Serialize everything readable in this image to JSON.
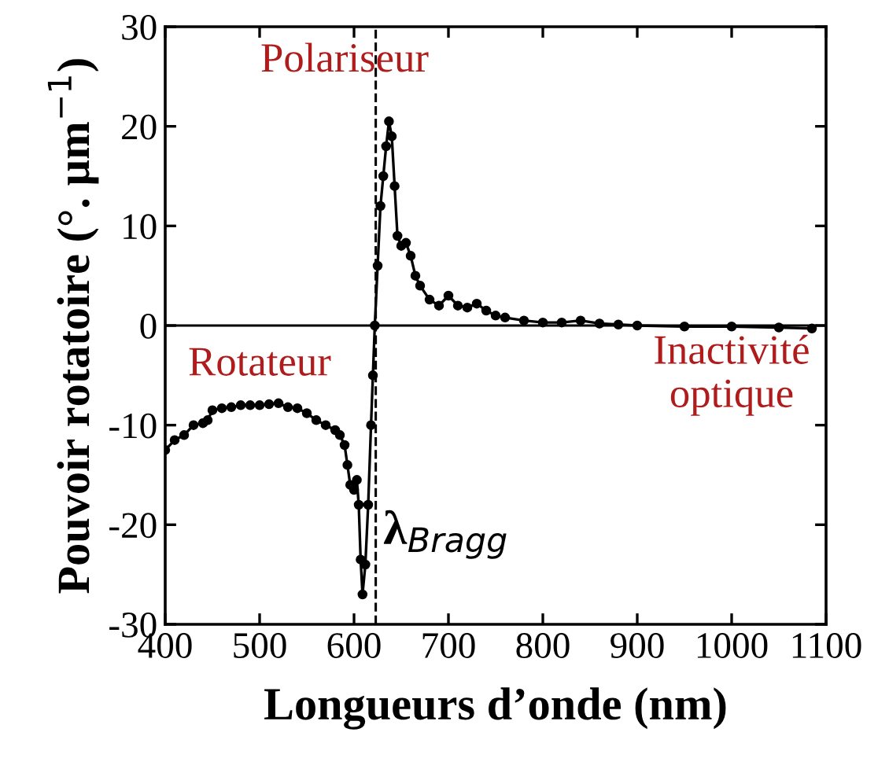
{
  "chart_data": {
    "type": "line",
    "xlabel": "Longueurs d’onde (nm)",
    "ylabel": "Pouvoir rotatoire (°. µm$^{−1}$)",
    "xlim": [
      400,
      1100
    ],
    "xticks": [
      400,
      500,
      600,
      700,
      800,
      900,
      1000,
      1100
    ],
    "ylim": [
      -30,
      30
    ],
    "yticks": [
      -30,
      -20,
      -10,
      0,
      10,
      20,
      30
    ],
    "grid": false,
    "marker": "circle",
    "line_style": "solid",
    "series": [
      {
        "color": "#000000",
        "x": [
          400,
          410,
          420,
          430,
          440,
          445,
          450,
          460,
          470,
          480,
          490,
          500,
          510,
          520,
          530,
          540,
          550,
          560,
          570,
          580,
          585,
          590,
          593,
          596,
          600,
          603,
          605,
          607,
          609,
          612,
          615,
          618,
          620,
          622,
          625,
          628,
          631,
          634,
          637,
          640,
          643,
          646,
          650,
          655,
          660,
          665,
          670,
          680,
          690,
          700,
          710,
          720,
          730,
          740,
          750,
          760,
          780,
          800,
          820,
          840,
          860,
          880,
          900,
          950,
          1000,
          1050,
          1085
        ],
        "values": [
          -12.5,
          -11.5,
          -11,
          -10,
          -9.8,
          -9.5,
          -8.5,
          -8.3,
          -8.2,
          -8,
          -8,
          -8,
          -7.9,
          -7.8,
          -8.2,
          -8.3,
          -8.8,
          -9.5,
          -10,
          -10.5,
          -11,
          -12,
          -14,
          -16,
          -16.5,
          -15.5,
          -18,
          -23.5,
          -27,
          -24,
          -18,
          -10,
          -5,
          0,
          6,
          12,
          15,
          18,
          20.5,
          19,
          14,
          9,
          8,
          8.3,
          7,
          5,
          4,
          2.6,
          2,
          3,
          2,
          1.8,
          2.2,
          1.5,
          1,
          0.8,
          0.5,
          0.3,
          0.3,
          0.5,
          0.2,
          0.1,
          0,
          -0.1,
          -0.1,
          -0.2,
          -0.3
        ]
      }
    ],
    "ref_lines": [
      {
        "axis": "x",
        "value": 623,
        "label": "λ$_{Bragg}$",
        "line_style": "dashed"
      },
      {
        "axis": "y",
        "value": 0,
        "line_style": "solid"
      }
    ],
    "annotations": [
      "Polariseur",
      "Rotateur",
      "Inactivité\noptique"
    ]
  }
}
